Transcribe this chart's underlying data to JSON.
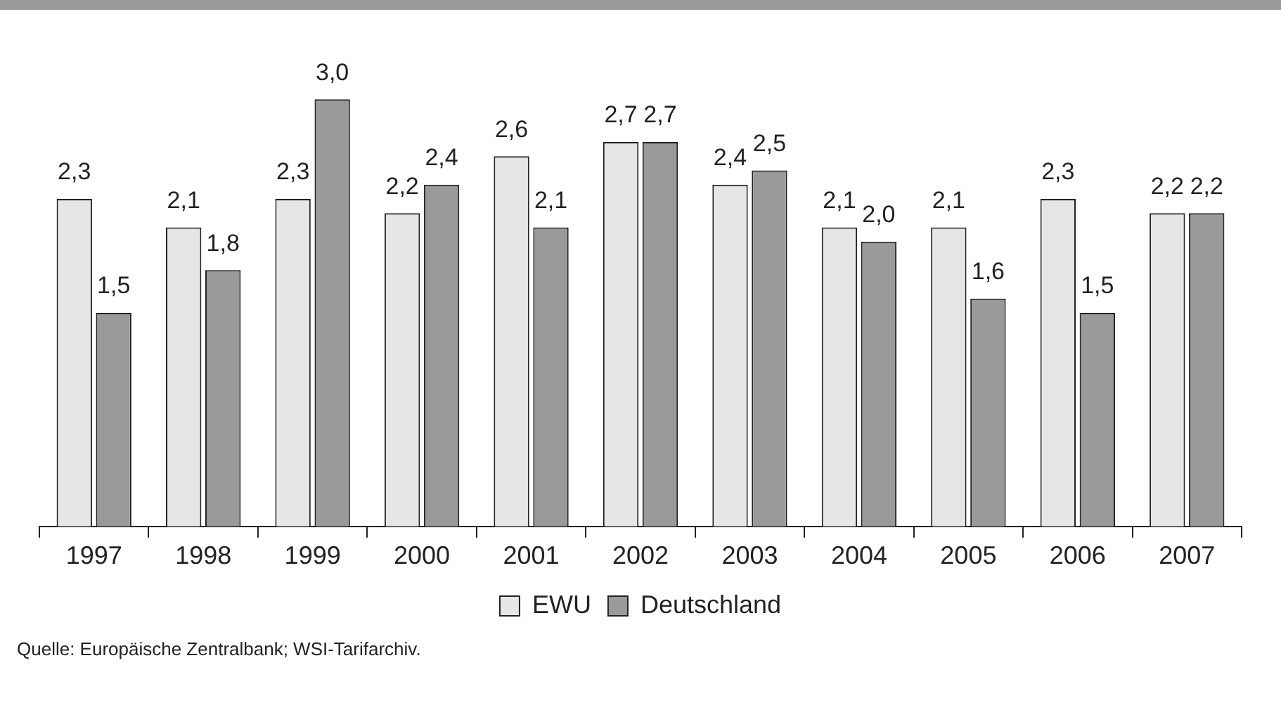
{
  "chart_data": {
    "type": "bar",
    "categories": [
      "1997",
      "1998",
      "1999",
      "2000",
      "2001",
      "2002",
      "2003",
      "2004",
      "2005",
      "2006",
      "2007"
    ],
    "series": [
      {
        "name": "EWU",
        "color": "#e6e6e6",
        "values": [
          2.3,
          2.1,
          2.3,
          2.2,
          2.6,
          2.7,
          2.4,
          2.1,
          2.1,
          2.3,
          2.2
        ],
        "value_labels": [
          "2,3",
          "2,1",
          "2,3",
          "2,2",
          "2,6",
          "2,7",
          "2,4",
          "2,1",
          "2,1",
          "2,3",
          "2,2"
        ]
      },
      {
        "name": "Deutschland",
        "color": "#9a9a9a",
        "values": [
          1.5,
          1.8,
          3.0,
          2.4,
          2.1,
          2.7,
          2.5,
          2.0,
          1.6,
          1.5,
          2.2
        ],
        "value_labels": [
          "1,5",
          "1,8",
          "3,0",
          "2,4",
          "2,1",
          "2,7",
          "2,5",
          "2,0",
          "1,6",
          "1,5",
          "2,2"
        ]
      }
    ],
    "legend": "bottom",
    "grid": false,
    "annotations": [
      "Quelle: Europäische Zentralbank; WSI-Tarifarchiv."
    ]
  }
}
